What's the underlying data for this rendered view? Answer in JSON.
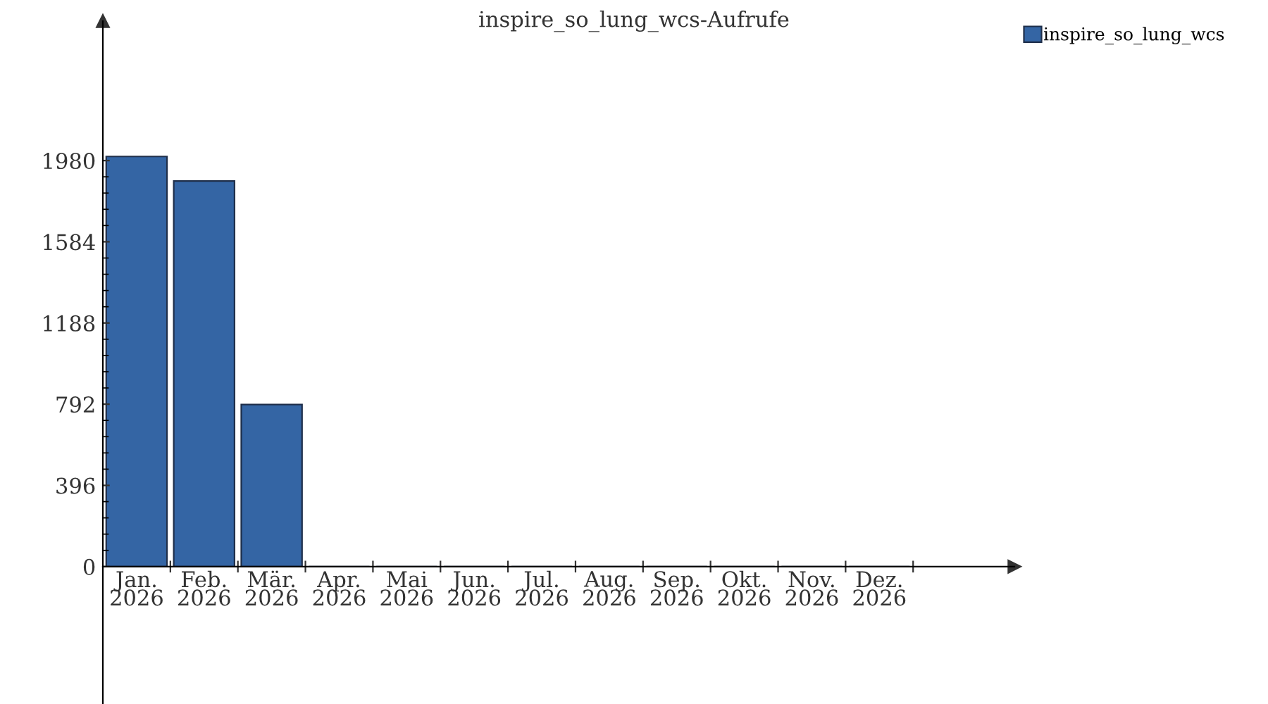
{
  "chart_data": {
    "type": "bar",
    "title": "inspire_so_lung_wcs-Aufrufe",
    "categories": [
      "Jan.\n2026",
      "Feb.\n2026",
      "Mär.\n2026",
      "Apr.\n2026",
      "Mai\n2026",
      "Jun.\n2026",
      "Jul.\n2026",
      "Aug.\n2026",
      "Sep.\n2026",
      "Okt.\n2026",
      "Nov.\n2026",
      "Dez.\n2026"
    ],
    "series": [
      {
        "name": "inspire_so_lung_wcs",
        "color": "#3465a4",
        "values": [
          2000,
          1880,
          790,
          0,
          0,
          0,
          0,
          0,
          0,
          0,
          0,
          0
        ]
      }
    ],
    "ylim": [
      -670,
      2660
    ],
    "yticks": [
      0,
      396,
      792,
      1188,
      1584,
      1980
    ],
    "legend": "top right"
  }
}
